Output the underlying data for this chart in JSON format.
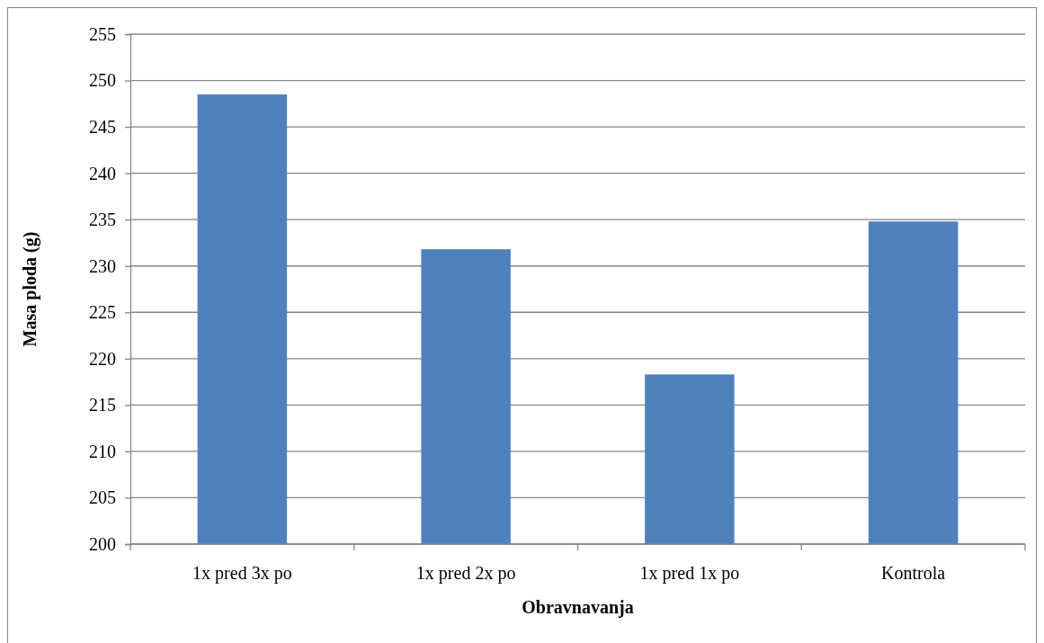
{
  "chart_data": {
    "type": "bar",
    "xlabel": "Obravnavanja",
    "ylabel": "Masa ploda (g)",
    "categories": [
      "1x pred 3x po",
      "1x pred 2x po",
      "1x pred 1x po",
      "Kontrola"
    ],
    "values": [
      248.5,
      231.8,
      218.3,
      234.8
    ],
    "color": "#4f81bd",
    "ylim": [
      200,
      255
    ],
    "yticks": [
      200,
      205,
      210,
      215,
      220,
      225,
      230,
      235,
      240,
      245,
      250,
      255
    ],
    "grid": "y"
  }
}
